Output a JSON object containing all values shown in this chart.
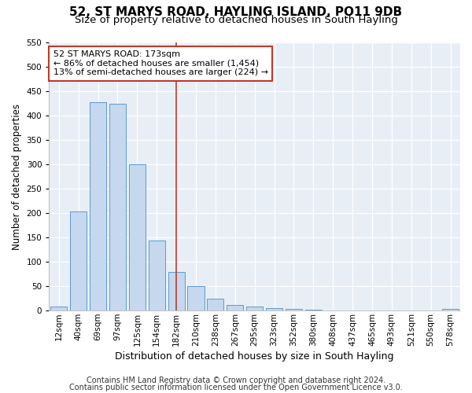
{
  "title": "52, ST MARYS ROAD, HAYLING ISLAND, PO11 9DB",
  "subtitle": "Size of property relative to detached houses in South Hayling",
  "xlabel": "Distribution of detached houses by size in South Hayling",
  "ylabel": "Number of detached properties",
  "bar_labels": [
    "12sqm",
    "40sqm",
    "69sqm",
    "97sqm",
    "125sqm",
    "154sqm",
    "182sqm",
    "210sqm",
    "238sqm",
    "267sqm",
    "295sqm",
    "323sqm",
    "352sqm",
    "380sqm",
    "408sqm",
    "437sqm",
    "465sqm",
    "493sqm",
    "521sqm",
    "550sqm",
    "578sqm"
  ],
  "bar_values": [
    8,
    203,
    428,
    425,
    300,
    143,
    80,
    50,
    25,
    12,
    8,
    5,
    3,
    2,
    0,
    0,
    0,
    0,
    0,
    0,
    4
  ],
  "bar_color": "#c5d8ed",
  "bar_edge_color": "#5b9bd5",
  "vline_x": 6.0,
  "vline_color": "#c0392b",
  "annotation_text": "52 ST MARYS ROAD: 173sqm\n← 86% of detached houses are smaller (1,454)\n13% of semi-detached houses are larger (224) →",
  "annotation_box_color": "#ffffff",
  "annotation_box_edge_color": "#c0392b",
  "ylim": [
    0,
    550
  ],
  "yticks": [
    0,
    50,
    100,
    150,
    200,
    250,
    300,
    350,
    400,
    450,
    500,
    550
  ],
  "plot_bg_color": "#e8eef5",
  "footer_line1": "Contains HM Land Registry data © Crown copyright and database right 2024.",
  "footer_line2": "Contains public sector information licensed under the Open Government Licence v3.0.",
  "title_fontsize": 11,
  "subtitle_fontsize": 9.5,
  "xlabel_fontsize": 9,
  "ylabel_fontsize": 8.5,
  "tick_fontsize": 7.5,
  "annotation_fontsize": 8,
  "footer_fontsize": 7
}
